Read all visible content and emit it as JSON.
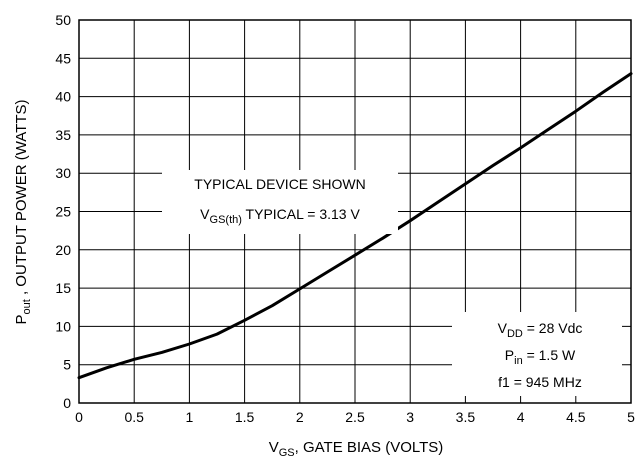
{
  "chart_data": {
    "type": "line",
    "xlabel": {
      "main": "V",
      "sub": "GS",
      "rest": ", GATE BIAS (VOLTS)"
    },
    "ylabel": {
      "main": "P",
      "sub": "out",
      "rest": " , OUTPUT POWER (WATTS)"
    },
    "xlim": [
      0,
      5
    ],
    "ylim": [
      0,
      50
    ],
    "x_ticks": [
      "0",
      "0.5",
      "1",
      "1.5",
      "2",
      "2.5",
      "3",
      "3.5",
      "4",
      "4.5",
      "5"
    ],
    "y_ticks": [
      "0",
      "5",
      "10",
      "15",
      "20",
      "25",
      "30",
      "35",
      "40",
      "45",
      "50"
    ],
    "grid": true,
    "series": [
      {
        "x": [
          0,
          0.25,
          0.5,
          0.75,
          1.0,
          1.25,
          1.5,
          1.75,
          2.0,
          2.25,
          2.5,
          2.75,
          3.0,
          3.25,
          3.5,
          3.75,
          4.0,
          4.25,
          4.5,
          4.75,
          5.0
        ],
        "y": [
          3.3,
          4.6,
          5.7,
          6.6,
          7.7,
          9.0,
          10.8,
          12.7,
          14.9,
          17.1,
          19.3,
          21.5,
          23.8,
          26.2,
          28.6,
          31.0,
          33.3,
          35.7,
          38.1,
          40.6,
          43.0
        ]
      }
    ],
    "annotations": {
      "typical": {
        "line1": "TYPICAL DEVICE SHOWN",
        "line2_main": "V",
        "line2_sub": "GS(th)",
        "line2_rest": " TYPICAL = 3.13 V"
      },
      "conditions": [
        {
          "main": "V",
          "sub": "DD",
          "rest": " = 28 Vdc"
        },
        {
          "main": "P",
          "sub": "in",
          "rest": " = 1.5 W"
        },
        {
          "main": "f1 = 945 MHz",
          "sub": "",
          "rest": ""
        }
      ]
    },
    "colors": {
      "line": "#000000",
      "grid": "#000000",
      "background": "#ffffff"
    }
  }
}
